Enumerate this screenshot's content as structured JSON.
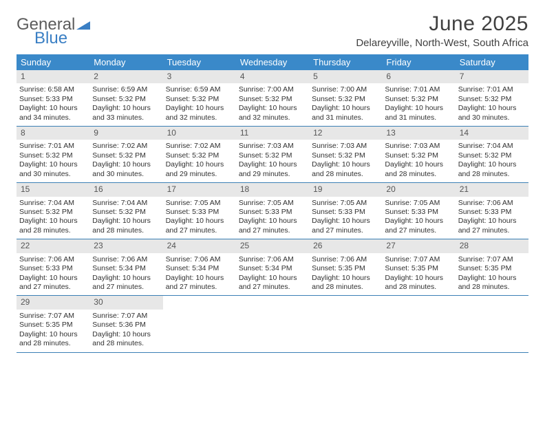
{
  "logo": {
    "line1": "General",
    "line2": "Blue"
  },
  "title": "June 2025",
  "location": "Delareyville, North-West, South Africa",
  "colors": {
    "header_bg": "#3a89c9",
    "header_text": "#ffffff",
    "daynum_bg": "#e7e7e7",
    "rule": "#3a7fb5",
    "body_text": "#303030",
    "logo_gray": "#5c5c5c",
    "logo_blue": "#3a7fc4"
  },
  "day_names": [
    "Sunday",
    "Monday",
    "Tuesday",
    "Wednesday",
    "Thursday",
    "Friday",
    "Saturday"
  ],
  "weeks": [
    [
      {
        "n": "1",
        "sr": "Sunrise: 6:58 AM",
        "ss": "Sunset: 5:33 PM",
        "dl": "Daylight: 10 hours and 34 minutes."
      },
      {
        "n": "2",
        "sr": "Sunrise: 6:59 AM",
        "ss": "Sunset: 5:32 PM",
        "dl": "Daylight: 10 hours and 33 minutes."
      },
      {
        "n": "3",
        "sr": "Sunrise: 6:59 AM",
        "ss": "Sunset: 5:32 PM",
        "dl": "Daylight: 10 hours and 32 minutes."
      },
      {
        "n": "4",
        "sr": "Sunrise: 7:00 AM",
        "ss": "Sunset: 5:32 PM",
        "dl": "Daylight: 10 hours and 32 minutes."
      },
      {
        "n": "5",
        "sr": "Sunrise: 7:00 AM",
        "ss": "Sunset: 5:32 PM",
        "dl": "Daylight: 10 hours and 31 minutes."
      },
      {
        "n": "6",
        "sr": "Sunrise: 7:01 AM",
        "ss": "Sunset: 5:32 PM",
        "dl": "Daylight: 10 hours and 31 minutes."
      },
      {
        "n": "7",
        "sr": "Sunrise: 7:01 AM",
        "ss": "Sunset: 5:32 PM",
        "dl": "Daylight: 10 hours and 30 minutes."
      }
    ],
    [
      {
        "n": "8",
        "sr": "Sunrise: 7:01 AM",
        "ss": "Sunset: 5:32 PM",
        "dl": "Daylight: 10 hours and 30 minutes."
      },
      {
        "n": "9",
        "sr": "Sunrise: 7:02 AM",
        "ss": "Sunset: 5:32 PM",
        "dl": "Daylight: 10 hours and 30 minutes."
      },
      {
        "n": "10",
        "sr": "Sunrise: 7:02 AM",
        "ss": "Sunset: 5:32 PM",
        "dl": "Daylight: 10 hours and 29 minutes."
      },
      {
        "n": "11",
        "sr": "Sunrise: 7:03 AM",
        "ss": "Sunset: 5:32 PM",
        "dl": "Daylight: 10 hours and 29 minutes."
      },
      {
        "n": "12",
        "sr": "Sunrise: 7:03 AM",
        "ss": "Sunset: 5:32 PM",
        "dl": "Daylight: 10 hours and 28 minutes."
      },
      {
        "n": "13",
        "sr": "Sunrise: 7:03 AM",
        "ss": "Sunset: 5:32 PM",
        "dl": "Daylight: 10 hours and 28 minutes."
      },
      {
        "n": "14",
        "sr": "Sunrise: 7:04 AM",
        "ss": "Sunset: 5:32 PM",
        "dl": "Daylight: 10 hours and 28 minutes."
      }
    ],
    [
      {
        "n": "15",
        "sr": "Sunrise: 7:04 AM",
        "ss": "Sunset: 5:32 PM",
        "dl": "Daylight: 10 hours and 28 minutes."
      },
      {
        "n": "16",
        "sr": "Sunrise: 7:04 AM",
        "ss": "Sunset: 5:32 PM",
        "dl": "Daylight: 10 hours and 28 minutes."
      },
      {
        "n": "17",
        "sr": "Sunrise: 7:05 AM",
        "ss": "Sunset: 5:33 PM",
        "dl": "Daylight: 10 hours and 27 minutes."
      },
      {
        "n": "18",
        "sr": "Sunrise: 7:05 AM",
        "ss": "Sunset: 5:33 PM",
        "dl": "Daylight: 10 hours and 27 minutes."
      },
      {
        "n": "19",
        "sr": "Sunrise: 7:05 AM",
        "ss": "Sunset: 5:33 PM",
        "dl": "Daylight: 10 hours and 27 minutes."
      },
      {
        "n": "20",
        "sr": "Sunrise: 7:05 AM",
        "ss": "Sunset: 5:33 PM",
        "dl": "Daylight: 10 hours and 27 minutes."
      },
      {
        "n": "21",
        "sr": "Sunrise: 7:06 AM",
        "ss": "Sunset: 5:33 PM",
        "dl": "Daylight: 10 hours and 27 minutes."
      }
    ],
    [
      {
        "n": "22",
        "sr": "Sunrise: 7:06 AM",
        "ss": "Sunset: 5:33 PM",
        "dl": "Daylight: 10 hours and 27 minutes."
      },
      {
        "n": "23",
        "sr": "Sunrise: 7:06 AM",
        "ss": "Sunset: 5:34 PM",
        "dl": "Daylight: 10 hours and 27 minutes."
      },
      {
        "n": "24",
        "sr": "Sunrise: 7:06 AM",
        "ss": "Sunset: 5:34 PM",
        "dl": "Daylight: 10 hours and 27 minutes."
      },
      {
        "n": "25",
        "sr": "Sunrise: 7:06 AM",
        "ss": "Sunset: 5:34 PM",
        "dl": "Daylight: 10 hours and 27 minutes."
      },
      {
        "n": "26",
        "sr": "Sunrise: 7:06 AM",
        "ss": "Sunset: 5:35 PM",
        "dl": "Daylight: 10 hours and 28 minutes."
      },
      {
        "n": "27",
        "sr": "Sunrise: 7:07 AM",
        "ss": "Sunset: 5:35 PM",
        "dl": "Daylight: 10 hours and 28 minutes."
      },
      {
        "n": "28",
        "sr": "Sunrise: 7:07 AM",
        "ss": "Sunset: 5:35 PM",
        "dl": "Daylight: 10 hours and 28 minutes."
      }
    ],
    [
      {
        "n": "29",
        "sr": "Sunrise: 7:07 AM",
        "ss": "Sunset: 5:35 PM",
        "dl": "Daylight: 10 hours and 28 minutes."
      },
      {
        "n": "30",
        "sr": "Sunrise: 7:07 AM",
        "ss": "Sunset: 5:36 PM",
        "dl": "Daylight: 10 hours and 28 minutes."
      },
      null,
      null,
      null,
      null,
      null
    ]
  ]
}
